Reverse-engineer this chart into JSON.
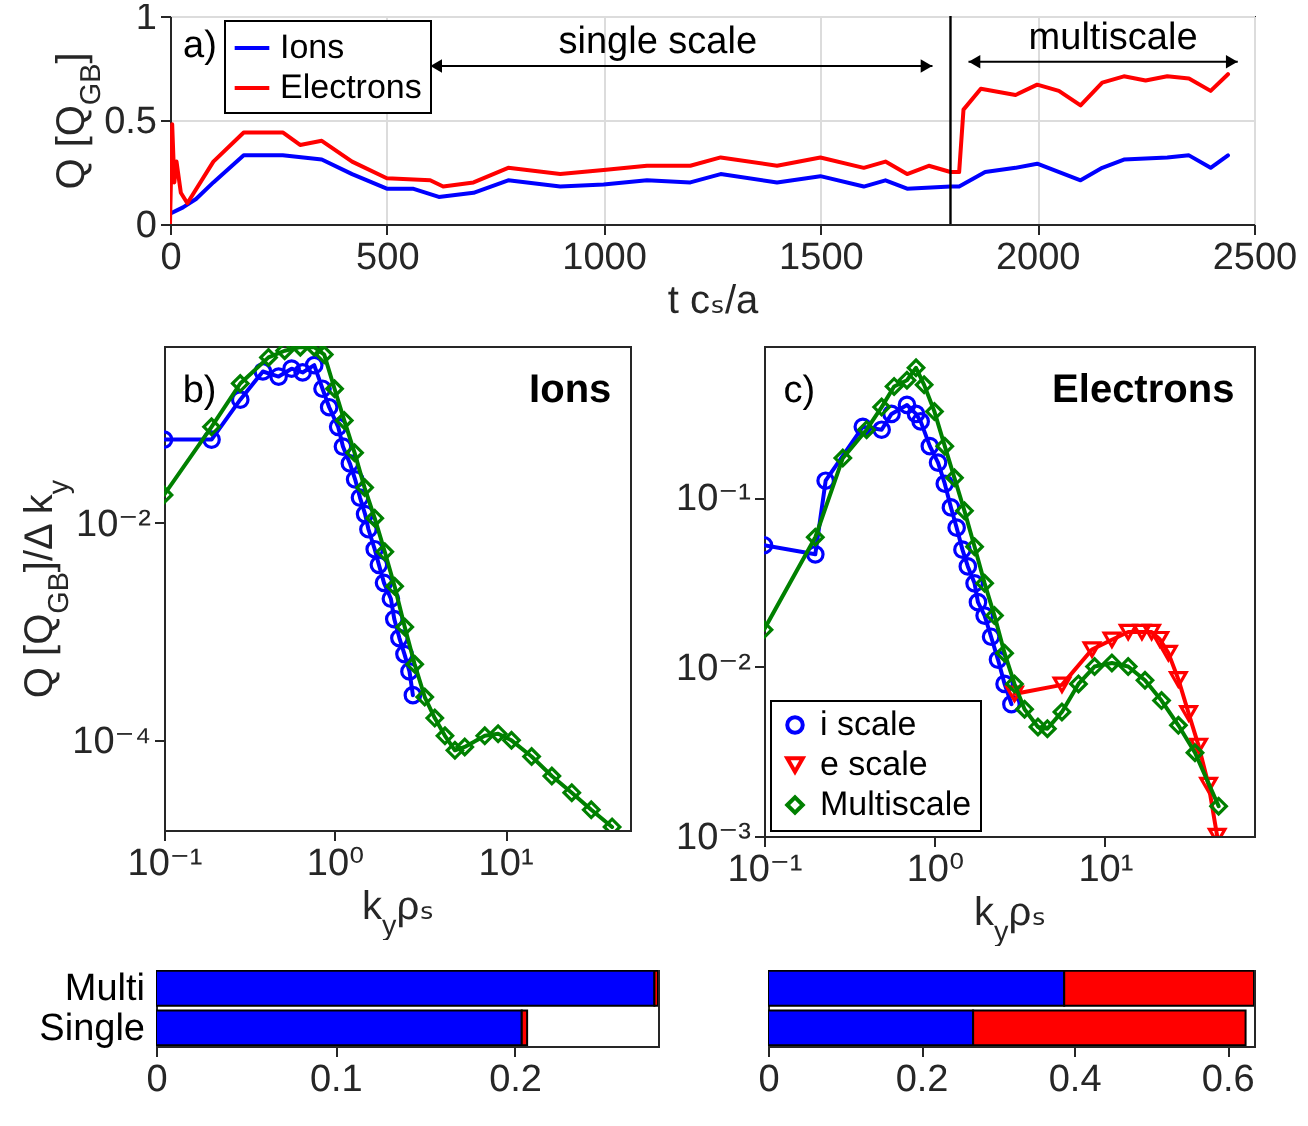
{
  "chart_data": [
    {
      "type": "line",
      "xlabel": "t cₛ/a",
      "ylabel": "Q [Q$_{GB}$]",
      "xlim": [
        0,
        2500
      ],
      "xticks": [
        0,
        500,
        1000,
        1500,
        2000,
        2500
      ],
      "ylim": [
        0,
        1
      ],
      "yticks": [
        0,
        0.5,
        1
      ],
      "grid": true,
      "legend": "top left",
      "marker": "none",
      "annotations": [
        "a)",
        "single scale",
        "multiscale"
      ],
      "ref_lines": [
        {
          "axis": "x",
          "value": 1800,
          "color": "#000000"
        }
      ],
      "series": [
        {
          "name": "Ions",
          "color": "#0000ff",
          "x": [
            0,
            30,
            60,
            100,
            170,
            260,
            350,
            420,
            500,
            560,
            620,
            700,
            780,
            900,
            1000,
            1100,
            1200,
            1270,
            1400,
            1500,
            1600,
            1650,
            1700,
            1800,
            1820,
            1880,
            1950,
            2000,
            2100,
            2150,
            2200,
            2300,
            2350,
            2400,
            2440
          ],
          "values": [
            0.05,
            0.08,
            0.12,
            0.2,
            0.33,
            0.33,
            0.31,
            0.24,
            0.17,
            0.17,
            0.13,
            0.15,
            0.21,
            0.18,
            0.19,
            0.21,
            0.2,
            0.24,
            0.2,
            0.23,
            0.18,
            0.21,
            0.17,
            0.18,
            0.18,
            0.25,
            0.27,
            0.29,
            0.21,
            0.27,
            0.31,
            0.32,
            0.33,
            0.27,
            0.33
          ]
        },
        {
          "name": "Electrons",
          "color": "#ff0000",
          "x": [
            0,
            5,
            10,
            15,
            25,
            40,
            100,
            170,
            260,
            300,
            350,
            420,
            500,
            600,
            630,
            700,
            780,
            900,
            1000,
            1100,
            1200,
            1270,
            1400,
            1500,
            1600,
            1650,
            1700,
            1750,
            1800,
            1820,
            1830,
            1870,
            1950,
            2000,
            2050,
            2100,
            2150,
            2200,
            2250,
            2300,
            2350,
            2400,
            2440
          ],
          "values": [
            0,
            0.48,
            0.2,
            0.3,
            0.15,
            0.1,
            0.3,
            0.44,
            0.44,
            0.38,
            0.4,
            0.3,
            0.22,
            0.21,
            0.18,
            0.2,
            0.27,
            0.24,
            0.26,
            0.28,
            0.28,
            0.32,
            0.28,
            0.32,
            0.27,
            0.3,
            0.24,
            0.28,
            0.25,
            0.25,
            0.55,
            0.65,
            0.62,
            0.67,
            0.64,
            0.57,
            0.68,
            0.71,
            0.69,
            0.71,
            0.7,
            0.64,
            0.72
          ]
        }
      ]
    },
    {
      "type": "line",
      "xlabel": "k$_{y}$ρₛ",
      "ylabel": "Q [Q$_{GB}$]/Δ k$_{y}$",
      "log": "xy",
      "xlim": [
        0.1,
        54
      ],
      "xticks": [
        {
          "value": 0.1,
          "label": "10⁻¹"
        },
        {
          "value": 1,
          "label": "10⁰"
        },
        {
          "value": 10,
          "label": "10¹"
        }
      ],
      "ylim": [
        1.5e-05,
        0.42
      ],
      "yticks": [
        {
          "value": 0.0001,
          "label": "10⁻⁴"
        },
        {
          "value": 0.01,
          "label": "10⁻²"
        }
      ],
      "annotations": [
        "b)",
        "Ions"
      ],
      "series": [
        {
          "color": "#0000ff",
          "marker": "circle",
          "x": [
            0.1,
            0.19,
            0.28,
            0.38,
            0.47,
            0.56,
            0.65,
            0.76,
            0.85,
            0.93,
            1.05,
            1.12,
            1.23,
            1.32,
            1.41,
            1.51,
            1.58,
            1.72,
            1.82,
            1.95,
            2.14,
            2.24,
            2.4,
            2.57,
            2.75,
            2.88
          ],
          "values": [
            0.058,
            0.058,
            0.135,
            0.245,
            0.22,
            0.26,
            0.24,
            0.28,
            0.17,
            0.115,
            0.076,
            0.05,
            0.035,
            0.025,
            0.017,
            0.012,
            0.0087,
            0.0057,
            0.0041,
            0.0028,
            0.002,
            0.0013,
            0.00087,
            0.00062,
            0.00043,
            0.00026
          ]
        },
        {
          "color": "#008000",
          "marker": "diamond",
          "x": [
            0.1,
            0.19,
            0.28,
            0.41,
            0.51,
            0.63,
            0.76,
            0.87,
            1.0,
            1.14,
            1.31,
            1.5,
            1.72,
            1.97,
            2.25,
            2.58,
            2.95,
            3.38,
            3.87,
            4.44,
            5.08,
            5.8,
            7.6,
            9.1,
            10.9,
            14.3,
            18.8,
            24.6,
            32,
            42.4
          ],
          "values": [
            0.018,
            0.076,
            0.19,
            0.33,
            0.38,
            0.41,
            0.41,
            0.35,
            0.17,
            0.087,
            0.044,
            0.021,
            0.011,
            0.0054,
            0.0026,
            0.0011,
            0.0005,
            0.00025,
            0.00016,
            0.00011,
            8.1e-05,
            8.7e-05,
            0.00011,
            0.000115,
            0.0001,
            7.1e-05,
            4.7e-05,
            3.3e-05,
            2.3e-05,
            1.6e-05
          ]
        }
      ]
    },
    {
      "type": "line",
      "xlabel": "k$_{y}$ρₛ",
      "log": "xy",
      "xlim": [
        0.1,
        75
      ],
      "xticks": [
        {
          "value": 0.1,
          "label": "10⁻¹"
        },
        {
          "value": 1,
          "label": "10⁰"
        },
        {
          "value": 10,
          "label": "10¹"
        }
      ],
      "ylim": [
        0.001,
        0.78
      ],
      "yticks": [
        {
          "value": 0.001,
          "label": "10⁻³"
        },
        {
          "value": 0.01,
          "label": "10⁻²"
        },
        {
          "value": 0.1,
          "label": "10⁻¹"
        }
      ],
      "legend": "bottom left",
      "annotations": [
        "c)",
        "Electrons"
      ],
      "series": [
        {
          "name": "i scale",
          "color": "#0000ff",
          "marker": "circle",
          "x": [
            0.1,
            0.2,
            0.23,
            0.38,
            0.49,
            0.56,
            0.69,
            0.78,
            0.83,
            0.94,
            1.05,
            1.15,
            1.25,
            1.35,
            1.46,
            1.57,
            1.72,
            1.8,
            1.97,
            2.15,
            2.36,
            2.58,
            2.83
          ],
          "values": [
            0.052,
            0.046,
            0.125,
            0.26,
            0.25,
            0.31,
            0.35,
            0.31,
            0.28,
            0.2,
            0.16,
            0.12,
            0.087,
            0.066,
            0.049,
            0.039,
            0.031,
            0.024,
            0.02,
            0.015,
            0.011,
            0.0079,
            0.006
          ]
        },
        {
          "name": "e scale",
          "color": "#ff0000",
          "marker": "triangle",
          "x": [
            2.95,
            5.6,
            8.4,
            11,
            13.7,
            16.5,
            18.8,
            21,
            23.6,
            27,
            31,
            35.5,
            40.6,
            45.6
          ],
          "values": [
            0.0069,
            0.0078,
            0.0126,
            0.0144,
            0.016,
            0.016,
            0.016,
            0.0145,
            0.012,
            0.0084,
            0.0053,
            0.0034,
            0.002,
            0.001
          ]
        },
        {
          "name": "Multiscale",
          "color": "#008000",
          "marker": "diamond",
          "x": [
            0.1,
            0.2,
            0.29,
            0.4,
            0.49,
            0.58,
            0.69,
            0.78,
            0.87,
            1.0,
            1.15,
            1.31,
            1.5,
            1.72,
            1.97,
            2.25,
            2.58,
            2.95,
            3.38,
            4.05,
            4.6,
            5.6,
            7.0,
            8.7,
            11,
            13.7,
            17.2,
            21.5,
            27,
            33.8,
            46.5
          ],
          "values": [
            0.0165,
            0.058,
            0.17,
            0.25,
            0.34,
            0.45,
            0.49,
            0.58,
            0.46,
            0.32,
            0.2,
            0.13,
            0.083,
            0.051,
            0.031,
            0.02,
            0.012,
            0.0079,
            0.0056,
            0.0044,
            0.0043,
            0.0054,
            0.0079,
            0.01,
            0.0105,
            0.01,
            0.0083,
            0.0063,
            0.0045,
            0.0031,
            0.0015
          ]
        }
      ]
    },
    {
      "type": "bar",
      "orientation": "horizontal",
      "stacked": true,
      "categories": [
        "Multi",
        "Single"
      ],
      "xlim": [
        0,
        0.28
      ],
      "xticks": [
        0,
        0.1,
        0.2
      ],
      "series": [
        {
          "color": "#0000ff",
          "values": [
            0.278,
            0.204
          ]
        },
        {
          "color": "#ff0000",
          "values": [
            0.002,
            0.003
          ]
        }
      ]
    },
    {
      "type": "bar",
      "orientation": "horizontal",
      "stacked": true,
      "categories": [
        null,
        null
      ],
      "tick_labels": "x",
      "xlim": [
        0,
        0.635
      ],
      "xticks": [
        0,
        0.2,
        0.4,
        0.6
      ],
      "series": [
        {
          "color": "#0000ff",
          "values": [
            0.387,
            0.268
          ]
        },
        {
          "color": "#ff0000",
          "values": [
            0.248,
            0.356
          ]
        }
      ]
    }
  ]
}
